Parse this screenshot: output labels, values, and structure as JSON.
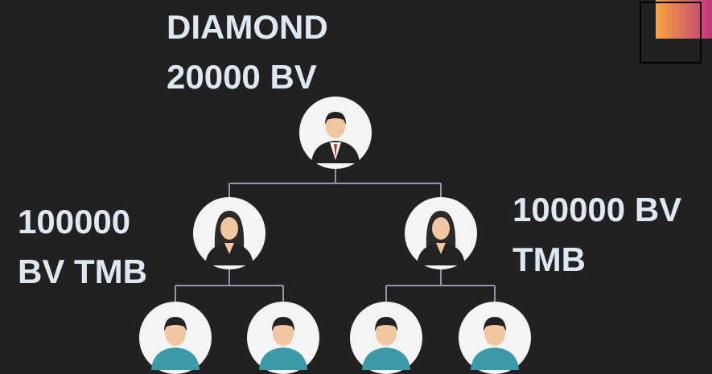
{
  "top": {
    "lines": [
      "DIAMOND",
      "20000 BV"
    ]
  },
  "left": {
    "lines": [
      "100000",
      "BV TMB"
    ]
  },
  "right": {
    "lines": [
      "100000 BV",
      "TMB"
    ]
  }
}
